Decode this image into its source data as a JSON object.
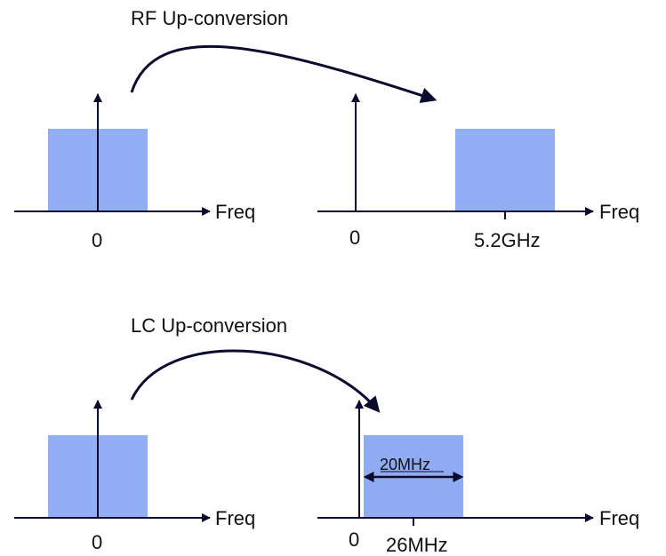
{
  "colors": {
    "band_fill": "#92aef5",
    "band_fill_lc": "#8fabf2",
    "axis": "#0b0b2e",
    "text": "#111111"
  },
  "rf_section": {
    "title": "RF Up-conversion",
    "baseband": {
      "origin_label": "0",
      "axis_label": "Freq"
    },
    "shifted": {
      "origin_label": "0",
      "center_label": "5.2GHz",
      "axis_label": "Freq"
    }
  },
  "lc_section": {
    "title": "LC Up-conversion",
    "baseband": {
      "origin_label": "0",
      "axis_label": "Freq"
    },
    "shifted": {
      "origin_label": "0",
      "center_label": "26MHz",
      "axis_label": "Freq",
      "bandwidth_label": "20MHz"
    }
  }
}
